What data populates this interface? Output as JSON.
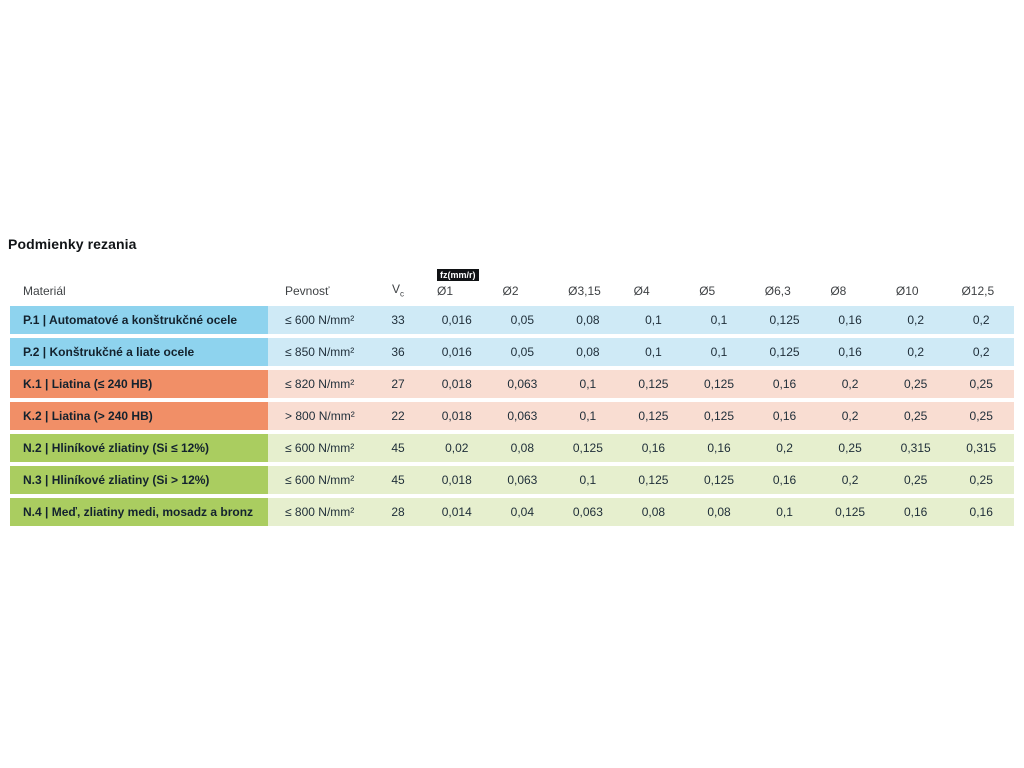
{
  "title": "Podmienky rezania",
  "table": {
    "headers": {
      "material": "Materiál",
      "strength": "Pevnosť",
      "vc_base": "V",
      "vc_sub": "c",
      "fz_badge": "fz(mm/r)",
      "diameters": [
        "Ø1",
        "Ø2",
        "Ø3,15",
        "Ø4",
        "Ø5",
        "Ø6,3",
        "Ø8",
        "Ø10",
        "Ø12,5"
      ]
    },
    "colors": {
      "P": {
        "label_bg": "#8ed3ee",
        "row_bg": "#cfeaf6"
      },
      "K": {
        "label_bg": "#f18f67",
        "row_bg": "#f9ddd2"
      },
      "N": {
        "label_bg": "#aacd60",
        "row_bg": "#e6efce"
      }
    },
    "rows": [
      {
        "group": "P",
        "material": "P.1 | Automatové a konštrukčné ocele",
        "strength": "≤ 600 N/mm²",
        "vc": "33",
        "values": [
          "0,016",
          "0,05",
          "0,08",
          "0,1",
          "0,1",
          "0,125",
          "0,16",
          "0,2",
          "0,2"
        ]
      },
      {
        "group": "P",
        "material": "P.2 | Konštrukčné a liate ocele",
        "strength": "≤ 850 N/mm²",
        "vc": "36",
        "values": [
          "0,016",
          "0,05",
          "0,08",
          "0,1",
          "0,1",
          "0,125",
          "0,16",
          "0,2",
          "0,2"
        ]
      },
      {
        "group": "K",
        "material": "K.1 | Liatina (≤ 240 HB)",
        "strength": "≤ 820 N/mm²",
        "vc": "27",
        "values": [
          "0,018",
          "0,063",
          "0,1",
          "0,125",
          "0,125",
          "0,16",
          "0,2",
          "0,25",
          "0,25"
        ]
      },
      {
        "group": "K",
        "material": "K.2 | Liatina (> 240 HB)",
        "strength": "> 800 N/mm²",
        "vc": "22",
        "values": [
          "0,018",
          "0,063",
          "0,1",
          "0,125",
          "0,125",
          "0,16",
          "0,2",
          "0,25",
          "0,25"
        ]
      },
      {
        "group": "N",
        "material": "N.2 | Hliníkové zliatiny (Si ≤ 12%)",
        "strength": "≤ 600 N/mm²",
        "vc": "45",
        "values": [
          "0,02",
          "0,08",
          "0,125",
          "0,16",
          "0,16",
          "0,2",
          "0,25",
          "0,315",
          "0,315"
        ]
      },
      {
        "group": "N",
        "material": "N.3 | Hliníkové zliatiny (Si > 12%)",
        "strength": "≤ 600 N/mm²",
        "vc": "45",
        "values": [
          "0,018",
          "0,063",
          "0,1",
          "0,125",
          "0,125",
          "0,16",
          "0,2",
          "0,25",
          "0,25"
        ]
      },
      {
        "group": "N",
        "material": "N.4 | Meď, zliatiny medi, mosadz a bronz",
        "strength": "≤ 800 N/mm²",
        "vc": "28",
        "values": [
          "0,014",
          "0,04",
          "0,063",
          "0,08",
          "0,08",
          "0,1",
          "0,125",
          "0,16",
          "0,16"
        ]
      }
    ]
  }
}
